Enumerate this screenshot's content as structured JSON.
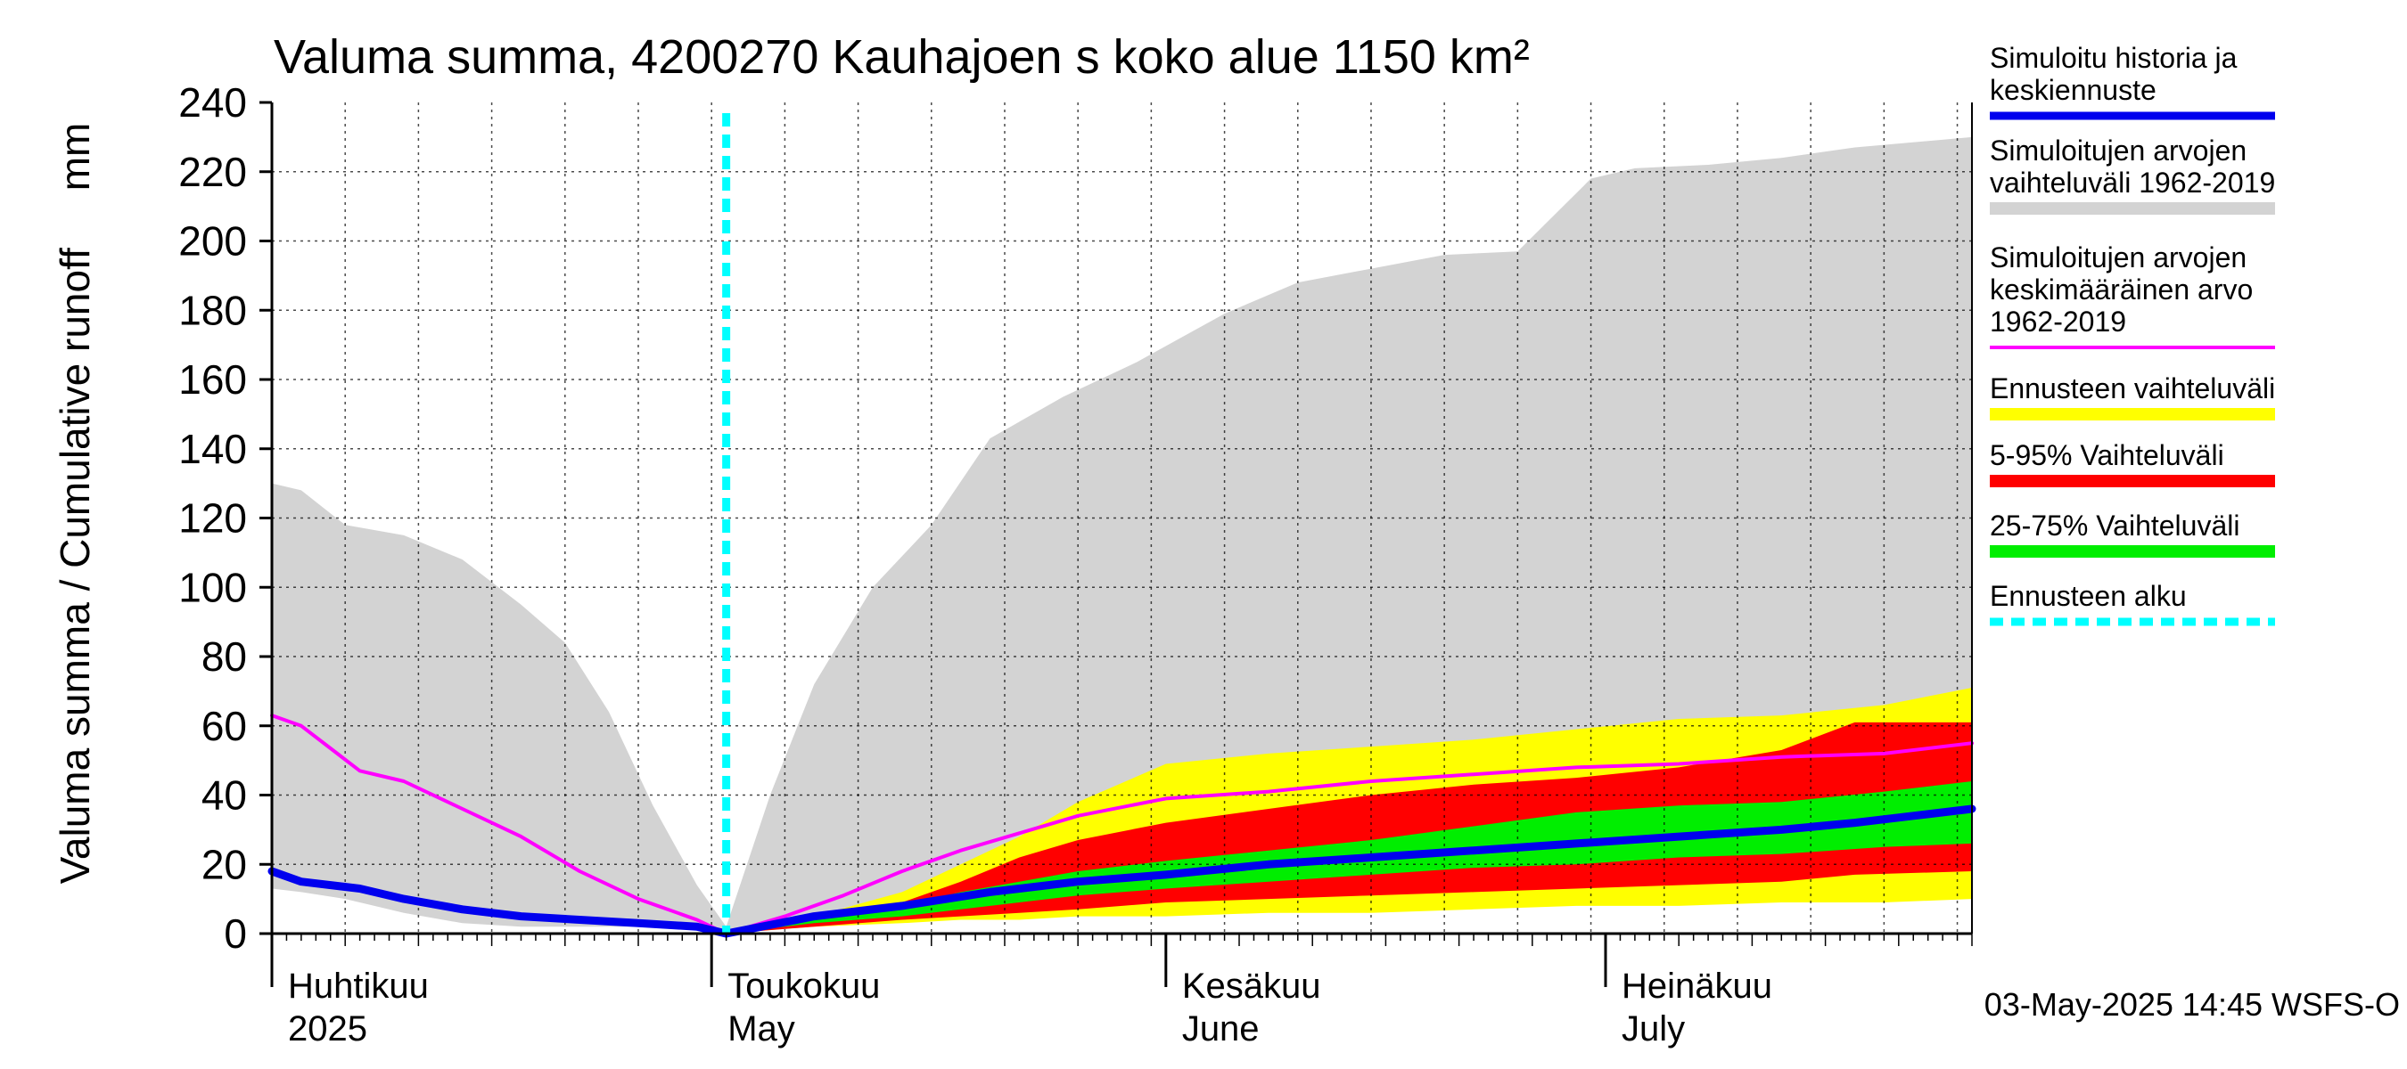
{
  "chart_data": {
    "type": "area",
    "title": "Valuma summa, 4200270 Kauhajoen s koko alue 1150 km²",
    "ylabel": "Valuma summa / Cumulative runoff     mm",
    "ylim": [
      0,
      240
    ],
    "yticks": [
      0,
      20,
      40,
      60,
      80,
      100,
      120,
      140,
      160,
      180,
      200,
      220,
      240
    ],
    "xlim": [
      "2025-04-01",
      "2025-07-26"
    ],
    "grid": true,
    "legend_position": "right",
    "month_labels": [
      {
        "date": "2025-04-01",
        "fi": "Huhtikuu",
        "en": "2025"
      },
      {
        "date": "2025-05-01",
        "fi": "Toukokuu",
        "en": "May"
      },
      {
        "date": "2025-06-01",
        "fi": "Kesäkuu",
        "en": "June"
      },
      {
        "date": "2025-07-01",
        "fi": "Heinäkuu",
        "en": "July"
      }
    ],
    "forecast_start": "2025-05-02",
    "footer": "03-May-2025 14:45 WSFS-O",
    "colors": {
      "history_range": "#d3d3d3",
      "forecast_range": "#ffff00",
      "p5_95": "#ff0000",
      "p25_75": "#00ee00",
      "history_forecast": "#0000ee",
      "mean": "#ff00ff",
      "forecast_start": "#00ffff"
    },
    "legend": [
      {
        "label": "Simuloitu historia ja\nkeskiennuste",
        "color": "#0000ee",
        "style": "line"
      },
      {
        "label": "Simuloitujen arvojen\nvaihteluväli 1962-2019",
        "color": "#d3d3d3",
        "style": "band"
      },
      {
        "label": "Simuloitujen arvojen\nkeskimääräinen arvo\n   1962-2019",
        "color": "#ff00ff",
        "style": "thin"
      },
      {
        "label": "Ennusteen vaihteluväli",
        "color": "#ffff00",
        "style": "band"
      },
      {
        "label": "5-95% Vaihteluväli",
        "color": "#ff0000",
        "style": "band"
      },
      {
        "label": "25-75% Vaihteluväli",
        "color": "#00ee00",
        "style": "band"
      },
      {
        "label": "Ennusteen alku",
        "color": "#00ffff",
        "style": "dashed"
      }
    ],
    "series": [
      {
        "name": "Simuloitujen arvojen vaihteluväli 1962-2019",
        "kind": "band",
        "x": [
          "2025-04-01",
          "2025-04-03",
          "2025-04-06",
          "2025-04-10",
          "2025-04-14",
          "2025-04-18",
          "2025-04-21",
          "2025-04-24",
          "2025-04-27",
          "2025-04-30",
          "2025-05-02",
          "2025-05-05",
          "2025-05-08",
          "2025-05-12",
          "2025-05-16",
          "2025-05-20",
          "2025-05-25",
          "2025-05-30",
          "2025-06-05",
          "2025-06-10",
          "2025-06-15",
          "2025-06-20",
          "2025-06-25",
          "2025-06-30",
          "2025-07-03",
          "2025-07-08",
          "2025-07-13",
          "2025-07-18",
          "2025-07-26"
        ],
        "upper": [
          130,
          128,
          118,
          115,
          108,
          95,
          84,
          64,
          37,
          14,
          2,
          40,
          72,
          100,
          118,
          143,
          155,
          165,
          179,
          188,
          192,
          196,
          197,
          218,
          221,
          222,
          224,
          227,
          230
        ],
        "lower": [
          13,
          12,
          10,
          6,
          3,
          2,
          2,
          2,
          2,
          1,
          0,
          2,
          3,
          4,
          5,
          5,
          6,
          7,
          7,
          8,
          8,
          9,
          9,
          10,
          10,
          10,
          11,
          11,
          12
        ]
      },
      {
        "name": "Ennusteen vaihteluväli",
        "kind": "band",
        "x": [
          "2025-05-02",
          "2025-05-08",
          "2025-05-14",
          "2025-05-18",
          "2025-05-22",
          "2025-05-26",
          "2025-06-01",
          "2025-06-08",
          "2025-06-15",
          "2025-06-22",
          "2025-06-29",
          "2025-07-06",
          "2025-07-13",
          "2025-07-20",
          "2025-07-26"
        ],
        "upper": [
          0,
          5,
          12,
          20,
          28,
          38,
          49,
          52,
          54,
          56,
          59,
          62,
          63,
          66,
          71
        ],
        "lower": [
          0,
          2,
          3,
          4,
          4,
          5,
          5,
          6,
          6,
          7,
          8,
          8,
          9,
          9,
          10
        ]
      },
      {
        "name": "5-95% Vaihteluväli",
        "kind": "band",
        "x": [
          "2025-05-02",
          "2025-05-08",
          "2025-05-14",
          "2025-05-18",
          "2025-05-22",
          "2025-05-26",
          "2025-06-01",
          "2025-06-08",
          "2025-06-15",
          "2025-06-22",
          "2025-06-29",
          "2025-07-06",
          "2025-07-13",
          "2025-07-18",
          "2025-07-26"
        ],
        "upper": [
          0,
          4,
          9,
          15,
          22,
          27,
          32,
          36,
          40,
          43,
          45,
          48,
          53,
          61,
          61
        ],
        "lower": [
          0,
          2,
          4,
          5,
          6,
          7,
          9,
          10,
          11,
          12,
          13,
          14,
          15,
          17,
          18
        ]
      },
      {
        "name": "25-75% Vaihteluväli",
        "kind": "band",
        "x": [
          "2025-05-02",
          "2025-05-08",
          "2025-05-14",
          "2025-05-18",
          "2025-05-22",
          "2025-05-26",
          "2025-06-01",
          "2025-06-08",
          "2025-06-15",
          "2025-06-22",
          "2025-06-29",
          "2025-07-06",
          "2025-07-13",
          "2025-07-20",
          "2025-07-26"
        ],
        "upper": [
          0,
          4,
          8,
          12,
          15,
          18,
          21,
          24,
          27,
          31,
          35,
          37,
          38,
          41,
          44
        ],
        "lower": [
          0,
          3,
          5,
          7,
          9,
          11,
          13,
          15,
          17,
          19,
          20,
          22,
          23,
          25,
          26
        ]
      },
      {
        "name": "Simuloitujen arvojen keskimääräinen arvo 1962-2019",
        "kind": "line",
        "x": [
          "2025-04-01",
          "2025-04-03",
          "2025-04-07",
          "2025-04-10",
          "2025-04-14",
          "2025-04-18",
          "2025-04-22",
          "2025-04-26",
          "2025-04-30",
          "2025-05-02",
          "2025-05-06",
          "2025-05-10",
          "2025-05-14",
          "2025-05-18",
          "2025-05-22",
          "2025-05-26",
          "2025-06-01",
          "2025-06-08",
          "2025-06-15",
          "2025-06-22",
          "2025-06-29",
          "2025-07-06",
          "2025-07-13",
          "2025-07-20",
          "2025-07-26"
        ],
        "y": [
          63,
          60,
          47,
          44,
          36,
          28,
          18,
          10,
          4,
          0,
          5,
          11,
          18,
          24,
          29,
          34,
          39,
          41,
          44,
          46,
          48,
          49,
          51,
          52,
          55
        ]
      },
      {
        "name": "Simuloitu historia ja keskiennuste",
        "kind": "line",
        "x": [
          "2025-04-01",
          "2025-04-03",
          "2025-04-07",
          "2025-04-10",
          "2025-04-14",
          "2025-04-18",
          "2025-04-22",
          "2025-04-26",
          "2025-04-30",
          "2025-05-02",
          "2025-05-08",
          "2025-05-14",
          "2025-05-20",
          "2025-05-26",
          "2025-06-01",
          "2025-06-08",
          "2025-06-15",
          "2025-06-22",
          "2025-06-29",
          "2025-07-06",
          "2025-07-13",
          "2025-07-18",
          "2025-07-22",
          "2025-07-26"
        ],
        "y": [
          18,
          15,
          13,
          10,
          7,
          5,
          4,
          3,
          2,
          0,
          5,
          8,
          12,
          15,
          17,
          20,
          22,
          24,
          26,
          28,
          30,
          32,
          34,
          36
        ]
      }
    ]
  }
}
